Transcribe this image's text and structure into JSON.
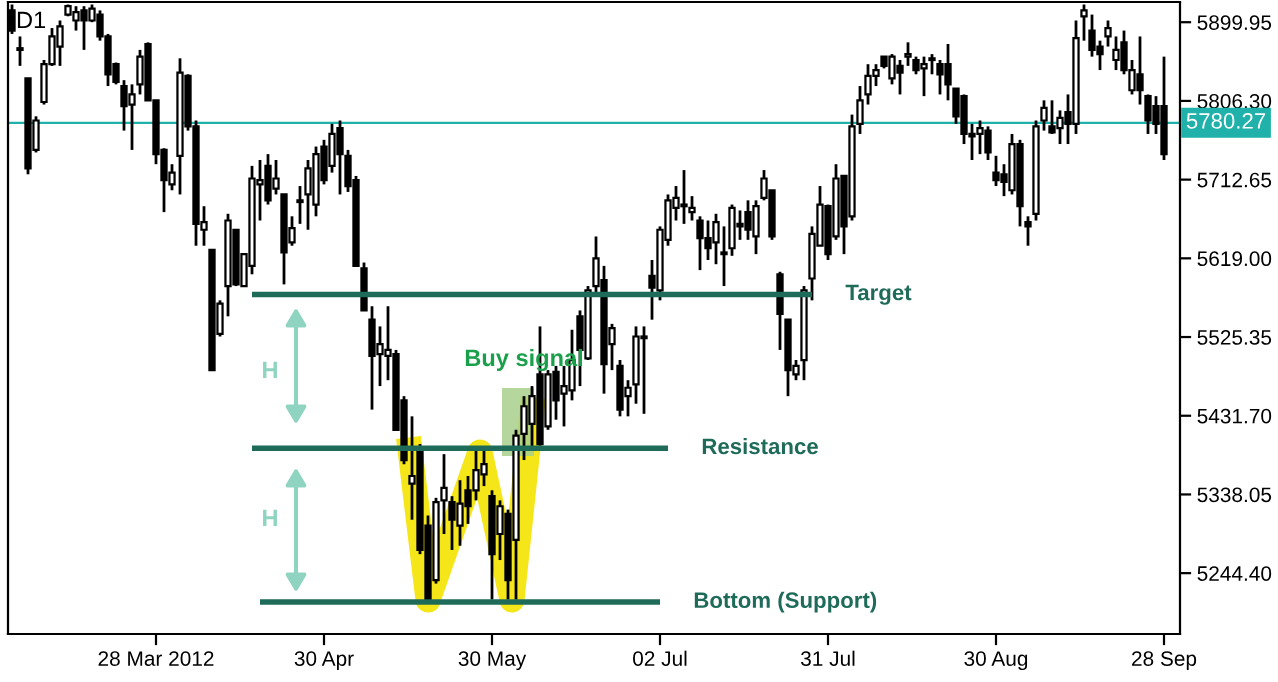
{
  "chart_data": {
    "type": "candlestick",
    "title": "D1",
    "categories": [
      null,
      null,
      null,
      null,
      null,
      null,
      null,
      null,
      null,
      null,
      null,
      null,
      null,
      null,
      null,
      null,
      null,
      null,
      "28 Mar 2012",
      null,
      null,
      null,
      null,
      null,
      null,
      null,
      null,
      null,
      null,
      null,
      null,
      null,
      null,
      null,
      null,
      null,
      null,
      null,
      null,
      "30 Apr",
      null,
      null,
      null,
      null,
      null,
      null,
      null,
      null,
      null,
      null,
      null,
      null,
      null,
      null,
      null,
      null,
      null,
      null,
      null,
      null,
      "30 May",
      null,
      null,
      null,
      null,
      null,
      null,
      null,
      null,
      null,
      null,
      null,
      null,
      null,
      null,
      null,
      null,
      null,
      null,
      null,
      null,
      "02 Jul",
      null,
      null,
      null,
      null,
      null,
      null,
      null,
      null,
      null,
      null,
      null,
      null,
      null,
      null,
      null,
      null,
      null,
      null,
      null,
      null,
      "31 Jul",
      null,
      null,
      null,
      null,
      null,
      null,
      null,
      null,
      null,
      null,
      null,
      null,
      null,
      null,
      null,
      null,
      null,
      null,
      null,
      null,
      "30 Aug",
      null,
      null,
      null,
      null,
      null,
      null,
      null,
      null,
      null,
      null,
      null,
      null,
      null,
      null,
      null,
      null,
      null,
      null,
      null,
      null,
      "28 Sep"
    ],
    "ohlc": [
      [
        5914,
        5921,
        5886,
        5890
      ],
      [
        5869,
        5883,
        5848,
        5867
      ],
      [
        5833,
        5833,
        5719,
        5726
      ],
      [
        5748,
        5788,
        5745,
        5783
      ],
      [
        5805,
        5855,
        5802,
        5850
      ],
      [
        5850,
        5893,
        5848,
        5883
      ],
      [
        5871,
        5902,
        5848,
        5895
      ],
      [
        5909,
        5921,
        5907,
        5919
      ],
      [
        5902,
        5919,
        5890,
        5912
      ],
      [
        5914,
        5919,
        5867,
        5902
      ],
      [
        5902,
        5921,
        5900,
        5916
      ],
      [
        5909,
        5914,
        5878,
        5883
      ],
      [
        5883,
        5886,
        5824,
        5838
      ],
      [
        5850,
        5852,
        5826,
        5829
      ],
      [
        5824,
        5831,
        5771,
        5800
      ],
      [
        5802,
        5826,
        5748,
        5814
      ],
      [
        5826,
        5867,
        5814,
        5859
      ],
      [
        5874,
        5876,
        5807,
        5807
      ],
      [
        5807,
        5807,
        5731,
        5743
      ],
      [
        5748,
        5750,
        5674,
        5712
      ],
      [
        5707,
        5731,
        5700,
        5721
      ],
      [
        5741,
        5857,
        5695,
        5840
      ],
      [
        5836,
        5838,
        5771,
        5776
      ],
      [
        5776,
        5783,
        5634,
        5660
      ],
      [
        5653,
        5681,
        5634,
        5662
      ],
      [
        5629,
        5629,
        5486,
        5486
      ],
      [
        5529,
        5569,
        5526,
        5565
      ],
      [
        5586,
        5672,
        5550,
        5664
      ],
      [
        5653,
        5653,
        5586,
        5588
      ],
      [
        5586,
        5624,
        5586,
        5624
      ],
      [
        5610,
        5729,
        5600,
        5714
      ],
      [
        5707,
        5736,
        5664,
        5712
      ],
      [
        5729,
        5743,
        5683,
        5688
      ],
      [
        5702,
        5736,
        5695,
        5714
      ],
      [
        5695,
        5695,
        5588,
        5626
      ],
      [
        5638,
        5669,
        5634,
        5655
      ],
      [
        5688,
        5705,
        5660,
        5686
      ],
      [
        5695,
        5736,
        5653,
        5726
      ],
      [
        5683,
        5752,
        5669,
        5743
      ],
      [
        5752,
        5760,
        5707,
        5712
      ],
      [
        5729,
        5779,
        5721,
        5767
      ],
      [
        5774,
        5783,
        5695,
        5743
      ],
      [
        5741,
        5748,
        5698,
        5705
      ],
      [
        5712,
        5717,
        5610,
        5610
      ],
      [
        5607,
        5614,
        5557,
        5557
      ],
      [
        5546,
        5562,
        5439,
        5503
      ],
      [
        5505,
        5538,
        5467,
        5517
      ],
      [
        5503,
        5562,
        5474,
        5510
      ],
      [
        5505,
        5510,
        5415,
        5415
      ],
      [
        5450,
        5455,
        5374,
        5379
      ],
      [
        5351,
        5431,
        5308,
        5360
      ],
      [
        5391,
        5398,
        5267,
        5272
      ],
      [
        5301,
        5313,
        5208,
        5213
      ],
      [
        5236,
        5334,
        5232,
        5329
      ],
      [
        5331,
        5386,
        5291,
        5346
      ],
      [
        5329,
        5336,
        5272,
        5308
      ],
      [
        5301,
        5355,
        5277,
        5327
      ],
      [
        5343,
        5360,
        5303,
        5324
      ],
      [
        5343,
        5391,
        5331,
        5367
      ],
      [
        5362,
        5391,
        5348,
        5374
      ],
      [
        5336,
        5343,
        5213,
        5267
      ],
      [
        5291,
        5331,
        5260,
        5324
      ],
      [
        5315,
        5320,
        5213,
        5236
      ],
      [
        5284,
        5415,
        5213,
        5408
      ],
      [
        5410,
        5455,
        5379,
        5443
      ],
      [
        5422,
        5467,
        5391,
        5455
      ],
      [
        5481,
        5538,
        5396,
        5398
      ],
      [
        5419,
        5486,
        5415,
        5481
      ],
      [
        5484,
        5491,
        5427,
        5450
      ],
      [
        5458,
        5491,
        5419,
        5467
      ],
      [
        5462,
        5534,
        5450,
        5498
      ],
      [
        5550,
        5557,
        5467,
        5510
      ],
      [
        5500,
        5586,
        5498,
        5581
      ],
      [
        5586,
        5645,
        5574,
        5619
      ],
      [
        5593,
        5610,
        5458,
        5493
      ],
      [
        5517,
        5541,
        5486,
        5536
      ],
      [
        5491,
        5498,
        5431,
        5439
      ],
      [
        5455,
        5474,
        5431,
        5465
      ],
      [
        5469,
        5538,
        5446,
        5526
      ],
      [
        5524,
        5538,
        5434,
        5526
      ],
      [
        5598,
        5617,
        5546,
        5584
      ],
      [
        5581,
        5657,
        5569,
        5653
      ],
      [
        5641,
        5695,
        5634,
        5688
      ],
      [
        5679,
        5705,
        5664,
        5691
      ],
      [
        5681,
        5724,
        5660,
        5683
      ],
      [
        5674,
        5693,
        5664,
        5679
      ],
      [
        5664,
        5669,
        5605,
        5643
      ],
      [
        5643,
        5664,
        5617,
        5631
      ],
      [
        5638,
        5672,
        5612,
        5662
      ],
      [
        5624,
        5657,
        5586,
        5626
      ],
      [
        5631,
        5683,
        5622,
        5679
      ],
      [
        5660,
        5676,
        5641,
        5657
      ],
      [
        5674,
        5688,
        5641,
        5653
      ],
      [
        5645,
        5688,
        5624,
        5681
      ],
      [
        5691,
        5724,
        5688,
        5714
      ],
      [
        5700,
        5700,
        5641,
        5645
      ],
      [
        5600,
        5603,
        5510,
        5553
      ],
      [
        5546,
        5546,
        5455,
        5486
      ],
      [
        5481,
        5498,
        5474,
        5491
      ],
      [
        5498,
        5586,
        5474,
        5581
      ],
      [
        5595,
        5657,
        5569,
        5648
      ],
      [
        5634,
        5705,
        5634,
        5683
      ],
      [
        5681,
        5683,
        5617,
        5624
      ],
      [
        5645,
        5731,
        5641,
        5714
      ],
      [
        5717,
        5717,
        5624,
        5657
      ],
      [
        5669,
        5790,
        5664,
        5776
      ],
      [
        5779,
        5824,
        5767,
        5807
      ],
      [
        5814,
        5850,
        5802,
        5836
      ],
      [
        5836,
        5850,
        5824,
        5843
      ],
      [
        5859,
        5859,
        5845,
        5848
      ],
      [
        5833,
        5862,
        5826,
        5859
      ],
      [
        5848,
        5855,
        5814,
        5840
      ],
      [
        5859,
        5876,
        5848,
        5862
      ],
      [
        5855,
        5859,
        5838,
        5843
      ],
      [
        5845,
        5859,
        5812,
        5850
      ],
      [
        5855,
        5862,
        5838,
        5857
      ],
      [
        5850,
        5855,
        5814,
        5838
      ],
      [
        5850,
        5874,
        5807,
        5826
      ],
      [
        5821,
        5821,
        5779,
        5788
      ],
      [
        5812,
        5814,
        5755,
        5767
      ],
      [
        5767,
        5779,
        5736,
        5764
      ],
      [
        5767,
        5783,
        5743,
        5774
      ],
      [
        5771,
        5776,
        5736,
        5745
      ],
      [
        5721,
        5741,
        5705,
        5712
      ],
      [
        5719,
        5731,
        5693,
        5710
      ],
      [
        5700,
        5767,
        5695,
        5755
      ],
      [
        5755,
        5760,
        5657,
        5681
      ],
      [
        5662,
        5669,
        5634,
        5657
      ],
      [
        5672,
        5783,
        5664,
        5776
      ],
      [
        5783,
        5807,
        5771,
        5798
      ],
      [
        5776,
        5807,
        5767,
        5769
      ],
      [
        5774,
        5795,
        5755,
        5786
      ],
      [
        5793,
        5814,
        5755,
        5779
      ],
      [
        5779,
        5902,
        5767,
        5881
      ],
      [
        5907,
        5921,
        5878,
        5914
      ],
      [
        5890,
        5909,
        5859,
        5867
      ],
      [
        5871,
        5878,
        5843,
        5862
      ],
      [
        5883,
        5902,
        5871,
        5893
      ],
      [
        5855,
        5883,
        5843,
        5867
      ],
      [
        5876,
        5890,
        5838,
        5843
      ],
      [
        5819,
        5855,
        5814,
        5843
      ],
      [
        5838,
        5883,
        5802,
        5819
      ],
      [
        5812,
        5814,
        5767,
        5783
      ],
      [
        5800,
        5812,
        5767,
        5779
      ],
      [
        5800,
        5859,
        5736,
        5743
      ]
    ],
    "series": [
      {
        "type": "line",
        "name": "Target",
        "color": "#1f6b5a",
        "values": [
          null,
          null,
          null,
          null,
          null,
          null,
          null,
          null,
          null,
          null,
          null,
          null,
          null,
          null,
          null,
          null,
          null,
          null,
          null,
          null,
          null,
          null,
          null,
          null,
          null,
          null,
          null,
          null,
          null,
          null,
          5576,
          null,
          null,
          null,
          null,
          null,
          null,
          null,
          null,
          null,
          null,
          null,
          null,
          null,
          null,
          null,
          null,
          null,
          null,
          null,
          null,
          null,
          null,
          null,
          null,
          null,
          null,
          null,
          null,
          null,
          null,
          null,
          null,
          null,
          null,
          null,
          null,
          null,
          null,
          null,
          null,
          null,
          null,
          null,
          null,
          null,
          null,
          null,
          null,
          null,
          null,
          null,
          null,
          null,
          null,
          null,
          null,
          null,
          null,
          null,
          null,
          null,
          null,
          null,
          null,
          null,
          null,
          null,
          null,
          null,
          5576,
          null,
          null,
          null,
          null,
          null,
          null,
          null,
          null,
          null,
          null,
          null,
          null,
          null,
          null,
          null,
          null,
          null,
          null,
          null,
          null,
          null,
          null,
          null,
          null,
          null,
          null,
          null,
          null,
          null,
          null,
          null,
          null,
          null,
          null,
          null,
          null,
          null,
          null,
          null,
          null,
          null,
          null,
          null,
          null
        ]
      },
      {
        "type": "line",
        "name": "Resistance",
        "color": "#1f6b5a",
        "values": [
          null,
          null,
          null,
          null,
          null,
          null,
          null,
          null,
          null,
          null,
          null,
          null,
          null,
          null,
          null,
          null,
          null,
          null,
          null,
          null,
          null,
          null,
          null,
          null,
          null,
          null,
          null,
          null,
          null,
          null,
          5393,
          null,
          null,
          null,
          null,
          null,
          null,
          null,
          null,
          null,
          null,
          null,
          null,
          null,
          null,
          null,
          null,
          null,
          null,
          null,
          null,
          null,
          null,
          null,
          null,
          null,
          null,
          null,
          null,
          null,
          null,
          null,
          null,
          null,
          null,
          null,
          null,
          null,
          null,
          null,
          null,
          null,
          null,
          null,
          null,
          null,
          null,
          null,
          null,
          null,
          null,
          null,
          5393,
          null,
          null,
          null,
          null,
          null,
          null,
          null,
          null,
          null,
          null,
          null,
          null,
          null,
          null,
          null,
          null,
          null,
          null,
          null,
          null,
          null,
          null,
          null,
          null,
          null,
          null,
          null,
          null,
          null,
          null,
          null,
          null,
          null,
          null,
          null,
          null,
          null,
          null,
          null,
          null,
          null,
          null,
          null,
          null,
          null,
          null,
          null,
          null,
          null,
          null,
          null,
          null,
          null,
          null,
          null,
          null,
          null,
          null,
          null,
          null,
          null,
          null
        ]
      },
      {
        "type": "line",
        "name": "Bottom (Support)",
        "color": "#1f6b5a",
        "values": [
          null,
          null,
          null,
          null,
          null,
          null,
          null,
          null,
          null,
          null,
          null,
          null,
          null,
          null,
          null,
          null,
          null,
          null,
          null,
          null,
          null,
          null,
          null,
          null,
          null,
          null,
          null,
          null,
          null,
          null,
          null,
          5210,
          null,
          null,
          null,
          null,
          null,
          null,
          null,
          null,
          null,
          null,
          null,
          null,
          null,
          null,
          null,
          null,
          null,
          null,
          null,
          null,
          null,
          null,
          null,
          null,
          null,
          null,
          null,
          null,
          null,
          null,
          null,
          null,
          null,
          null,
          null,
          null,
          null,
          null,
          null,
          null,
          null,
          null,
          null,
          null,
          null,
          null,
          null,
          null,
          null,
          5210,
          null,
          null,
          null,
          null,
          null,
          null,
          null,
          null,
          null,
          null,
          null,
          null,
          null,
          null,
          null,
          null,
          null,
          null,
          null,
          null,
          null,
          null,
          null,
          null,
          null,
          null,
          null,
          null,
          null,
          null,
          null,
          null,
          null,
          null,
          null,
          null,
          null,
          null,
          null,
          null,
          null,
          null,
          null,
          null,
          null,
          null,
          null,
          null,
          null,
          null,
          null,
          null,
          null,
          null,
          null,
          null,
          null,
          null,
          null,
          null,
          null,
          null,
          null
        ]
      }
    ],
    "ylim": [
      5172,
      5924
    ],
    "yticks": [
      {
        "value": 5244.4,
        "label": "5244.40"
      },
      {
        "value": 5338.05,
        "label": "5338.05"
      },
      {
        "value": 5431.7,
        "label": "5431.70"
      },
      {
        "value": 5525.35,
        "label": "5525.35"
      },
      {
        "value": 5619.0,
        "label": "5619.00"
      },
      {
        "value": 5712.65,
        "label": "5712.65"
      },
      {
        "value": 5806.3,
        "label": "5806.30"
      },
      {
        "value": 5899.95,
        "label": "5899.95"
      }
    ],
    "ref_lines": [
      {
        "axis": "y",
        "value": 5780.27,
        "label": "5780.27",
        "color": "#20b2aa"
      }
    ],
    "annotations": [
      "Buy signal",
      "H",
      "H"
    ],
    "grid": false,
    "legend": false
  }
}
